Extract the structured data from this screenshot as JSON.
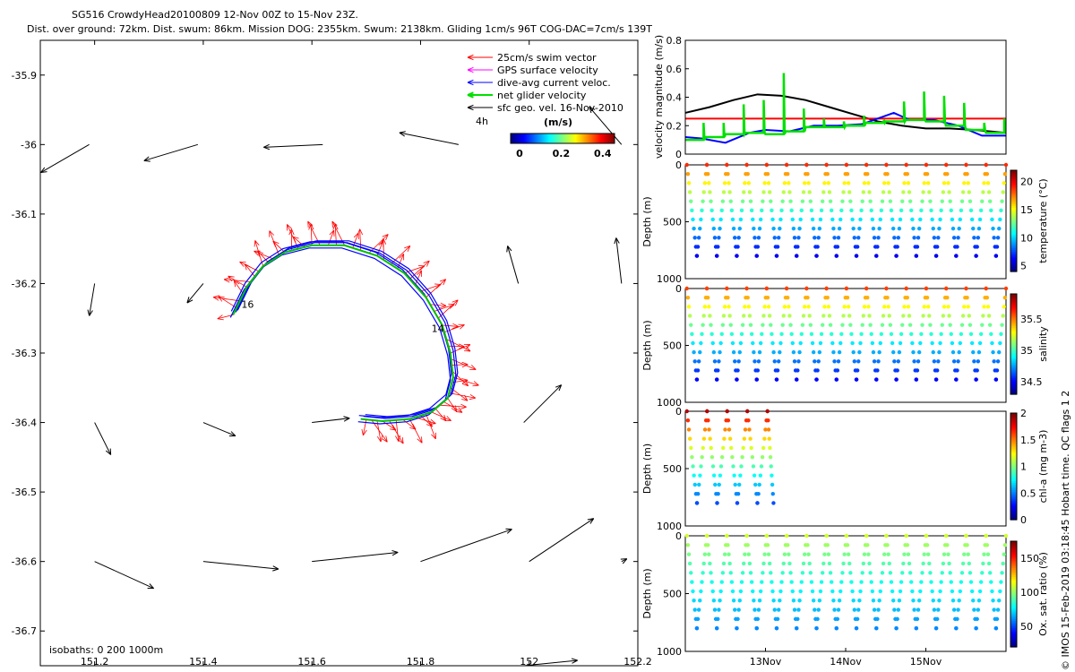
{
  "header": {
    "title_line1": "SG516 CrowdyHead20100809 12-Nov 00Z to 15-Nov 23Z.",
    "title_line2": "Dist. over ground: 72km. Dist. swum: 86km. Mission DOG: 2355km. Swum: 2138km. Gliding 1cm/s 96T COG-DAC=7cm/s 139T"
  },
  "footer_credit": "© IMOS 15-Feb-2019 03:18:45 Hobart time. QC flags 1  2",
  "chart_data": [
    {
      "type": "scatter",
      "name": "map",
      "xlim": [
        151.1,
        152.2
      ],
      "ylim": [
        -36.75,
        -35.85
      ],
      "x_ticks": [
        "151.2",
        "151.4",
        "151.6",
        "151.8",
        "152",
        "152.2"
      ],
      "y_ticks": [
        "-35.9",
        "-36",
        "-36.1",
        "-36.2",
        "-36.3",
        "-36.4",
        "-36.5",
        "-36.6",
        "-36.7"
      ],
      "legend": {
        "placement": "top-right",
        "entries": [
          {
            "label": "25cm/s swim vector",
            "color": "#ff0000"
          },
          {
            "label": "GPS surface velocity",
            "color": "#ff00ff"
          },
          {
            "label": "dive-avg current veloc.",
            "color": "#0000ff"
          },
          {
            "label": "net glider velocity",
            "color": "#00e000"
          },
          {
            "label": "sfc geo. vel. 16-Nov-2010",
            "color": "#000000"
          }
        ],
        "time_label": "4h"
      },
      "colorbar": {
        "title": "(m/s)",
        "ticks": [
          "0",
          "0.2",
          "0.4"
        ],
        "range": [
          0,
          0.5
        ]
      },
      "isobaths_label": "isobaths: 0   200   1000m",
      "track_labels": [
        "14",
        "16"
      ],
      "glider_track": [
        [
          151.455,
          -36.245
        ],
        [
          151.48,
          -36.205
        ],
        [
          151.51,
          -36.175
        ],
        [
          151.55,
          -36.155
        ],
        [
          151.6,
          -36.145
        ],
        [
          151.66,
          -36.145
        ],
        [
          151.72,
          -36.16
        ],
        [
          151.77,
          -36.185
        ],
        [
          151.81,
          -36.22
        ],
        [
          151.84,
          -36.26
        ],
        [
          151.855,
          -36.3
        ],
        [
          151.86,
          -36.335
        ],
        [
          151.85,
          -36.365
        ],
        [
          151.82,
          -36.385
        ],
        [
          151.78,
          -36.395
        ],
        [
          151.73,
          -36.398
        ],
        [
          151.69,
          -36.395
        ]
      ],
      "geo_vectors": [
        {
          "lon": 151.19,
          "lat": -36.0,
          "u": -0.09,
          "v": -0.052
        },
        {
          "lon": 151.39,
          "lat": -36.0,
          "u": -0.1,
          "v": -0.03
        },
        {
          "lon": 151.62,
          "lat": -36.0,
          "u": -0.11,
          "v": -0.005
        },
        {
          "lon": 151.87,
          "lat": -36.0,
          "u": -0.11,
          "v": 0.022
        },
        {
          "lon": 152.17,
          "lat": -36.0,
          "u": -0.06,
          "v": 0.07
        },
        {
          "lon": 151.2,
          "lat": -36.2,
          "u": -0.01,
          "v": -0.06
        },
        {
          "lon": 151.4,
          "lat": -36.2,
          "u": -0.03,
          "v": -0.036
        },
        {
          "lon": 151.98,
          "lat": -36.2,
          "u": -0.02,
          "v": 0.07
        },
        {
          "lon": 152.17,
          "lat": -36.2,
          "u": -0.01,
          "v": 0.085
        },
        {
          "lon": 151.2,
          "lat": -36.4,
          "u": 0.03,
          "v": -0.06
        },
        {
          "lon": 151.4,
          "lat": -36.4,
          "u": 0.06,
          "v": -0.025
        },
        {
          "lon": 151.6,
          "lat": -36.4,
          "u": 0.07,
          "v": 0.008
        },
        {
          "lon": 151.99,
          "lat": -36.4,
          "u": 0.07,
          "v": 0.07
        },
        {
          "lon": 151.2,
          "lat": -36.6,
          "u": 0.11,
          "v": -0.05
        },
        {
          "lon": 151.4,
          "lat": -36.6,
          "u": 0.14,
          "v": -0.014
        },
        {
          "lon": 151.6,
          "lat": -36.6,
          "u": 0.16,
          "v": 0.017
        },
        {
          "lon": 151.8,
          "lat": -36.6,
          "u": 0.17,
          "v": 0.06
        },
        {
          "lon": 152.0,
          "lat": -36.6,
          "u": 0.12,
          "v": 0.08
        },
        {
          "lon": 152.17,
          "lat": -36.6,
          "u": 0.01,
          "v": 0.005
        },
        {
          "lon": 151.99,
          "lat": -36.75,
          "u": 0.1,
          "v": 0.01
        }
      ]
    },
    {
      "type": "line",
      "name": "velocity",
      "ylabel": "velocity magnitude (m/s)",
      "ylim": [
        0,
        0.8
      ],
      "y_ticks": [
        "0",
        "0.2",
        "0.4",
        "0.6",
        "0.8"
      ],
      "x_ticks": [
        "13Nov",
        "14Nov",
        "15Nov"
      ],
      "xlim": [
        12.0,
        16.0
      ],
      "series": [
        {
          "color": "#000000",
          "x": [
            12.0,
            12.3,
            12.6,
            12.9,
            13.2,
            13.5,
            13.8,
            14.1,
            14.4,
            14.7,
            15.0,
            15.3,
            15.6,
            16.0
          ],
          "y": [
            0.29,
            0.33,
            0.38,
            0.42,
            0.41,
            0.38,
            0.33,
            0.28,
            0.23,
            0.2,
            0.18,
            0.18,
            0.17,
            0.15
          ]
        },
        {
          "color": "#ff0000",
          "x": [
            12.0,
            16.0
          ],
          "y": [
            0.25,
            0.25
          ]
        },
        {
          "color": "#0000ff",
          "x": [
            12.0,
            12.2,
            12.5,
            12.8,
            13.0,
            13.3,
            13.6,
            13.9,
            14.2,
            14.4,
            14.6,
            14.8,
            15.1,
            15.4,
            15.7,
            16.0
          ],
          "y": [
            0.12,
            0.11,
            0.08,
            0.15,
            0.17,
            0.16,
            0.2,
            0.2,
            0.21,
            0.25,
            0.29,
            0.24,
            0.24,
            0.2,
            0.13,
            0.13
          ]
        }
      ],
      "green_series": {
        "color": "#00e000",
        "base": [
          0.1,
          0.12,
          0.14,
          0.15,
          0.14,
          0.16,
          0.19,
          0.19,
          0.2,
          0.22,
          0.23,
          0.24,
          0.23,
          0.2,
          0.17,
          0.15
        ],
        "spikes": [
          0.22,
          0.22,
          0.35,
          0.38,
          0.57,
          0.32,
          0.25,
          0.23,
          0.27,
          0.24,
          0.37,
          0.44,
          0.41,
          0.36,
          0.22,
          0.25
        ]
      }
    },
    {
      "type": "scatter",
      "name": "temperature",
      "ylabel": "Depth (m)",
      "cb_label": "temperature (°C)",
      "y_ticks": [
        "0",
        "500",
        "1000"
      ],
      "ylim": [
        0,
        1000
      ],
      "cb_ticks": [
        "5",
        "10",
        "15",
        "20"
      ],
      "cb_range": [
        4,
        22
      ],
      "surface_value": 19,
      "deep_value": 6,
      "max_depth": 800,
      "profiles": 16,
      "x_end": 16.0
    },
    {
      "type": "scatter",
      "name": "salinity",
      "ylabel": "Depth (m)",
      "cb_label": "salinity",
      "y_ticks": [
        "0",
        "500",
        "1000"
      ],
      "ylim": [
        0,
        1000
      ],
      "cb_ticks": [
        "34.5",
        "35",
        "35.5"
      ],
      "cb_range": [
        34.3,
        35.9
      ],
      "surface_value": 35.6,
      "deep_value": 34.5,
      "max_depth": 800,
      "profiles": 16,
      "x_end": 16.0
    },
    {
      "type": "scatter",
      "name": "chla",
      "ylabel": "Depth (m)",
      "cb_label": "chl-a (mg m-3)",
      "y_ticks": [
        "0",
        "500",
        "1000"
      ],
      "ylim": [
        0,
        1000
      ],
      "cb_ticks": [
        "0",
        "0.5",
        "1",
        "1.5",
        "2"
      ],
      "cb_range": [
        0,
        2
      ],
      "surface_value": 1.9,
      "deep_value": 0.4,
      "max_depth": 800,
      "profiles": 4.3,
      "x_end": 13.1
    },
    {
      "type": "scatter",
      "name": "oxygen",
      "ylabel": "Depth (m)",
      "cb_label": "Ox. sat. ratio (%)",
      "y_ticks": [
        "0",
        "500",
        "1000"
      ],
      "ylim": [
        0,
        1000
      ],
      "cb_ticks": [
        "50",
        "100",
        "150"
      ],
      "cb_range": [
        20,
        175
      ],
      "surface_value": 110,
      "deep_value": 60,
      "max_depth": 800,
      "profiles": 16,
      "x_end": 16.0
    }
  ]
}
